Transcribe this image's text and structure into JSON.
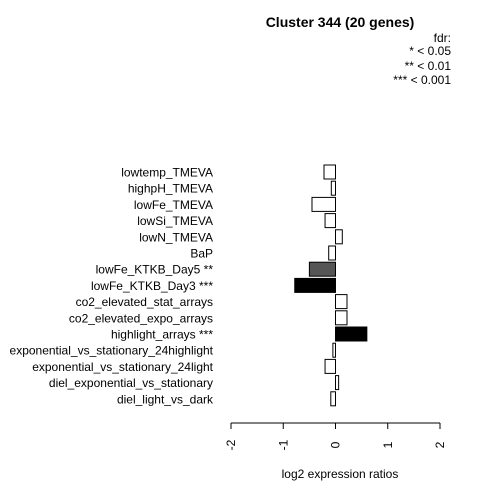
{
  "chart_data": {
    "type": "bar",
    "orientation": "horizontal",
    "title": "Cluster 344 (20 genes)",
    "xlabel": "log2 expression ratios",
    "ylabel": "",
    "xlim": [
      -2,
      2
    ],
    "xticks": [
      "-2",
      "-1",
      "0",
      "1",
      "2"
    ],
    "legend": {
      "title": "fdr:",
      "entries": [
        "* < 0.05",
        "** < 0.01",
        "*** < 0.001"
      ],
      "position": "top-right"
    },
    "categories": [
      "lowtemp_TMEVA",
      "highpH_TMEVA",
      "lowFe_TMEVA",
      "lowSi_TMEVA",
      "lowN_TMEVA",
      "BaP",
      "lowFe_KTKB_Day5 **",
      "lowFe_KTKB_Day3 ***",
      "co2_elevated_stat_arrays",
      "co2_elevated_expo_arrays",
      "highlight_arrays ***",
      "exponential_vs_stationary_24highlight",
      "exponential_vs_stationary_24light",
      "diel_exponential_vs_stationary",
      "diel_light_vs_dark"
    ],
    "values": [
      -0.22,
      -0.08,
      -0.45,
      -0.2,
      0.13,
      -0.13,
      -0.5,
      -0.78,
      0.22,
      0.22,
      0.6,
      -0.05,
      -0.2,
      0.06,
      -0.09
    ],
    "colors": [
      "#ffffff",
      "#ffffff",
      "#ffffff",
      "#ffffff",
      "#ffffff",
      "#ffffff",
      "#555555",
      "#000000",
      "#ffffff",
      "#ffffff",
      "#000000",
      "#ffffff",
      "#ffffff",
      "#ffffff",
      "#ffffff"
    ],
    "grid": false
  }
}
